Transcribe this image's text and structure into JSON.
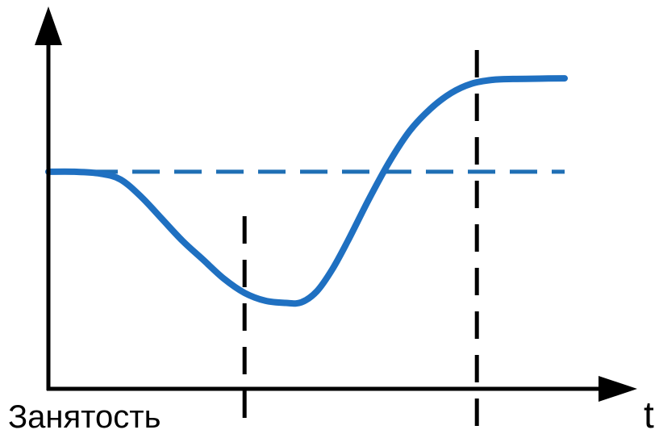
{
  "chart_data": {
    "type": "line",
    "title": "",
    "xlabel": "t",
    "ylabel": "Занятость",
    "grid": false,
    "legend": "none",
    "xlim": [
      0,
      100
    ],
    "ylim": [
      0,
      100
    ],
    "reference_line": {
      "label": "",
      "y": 69,
      "style": "dashed",
      "color": "#1f6fb5"
    },
    "markers": [
      {
        "label": "",
        "x": 38,
        "style": "dashed",
        "color": "#000000"
      },
      {
        "label": "",
        "x": 83,
        "style": "dashed",
        "color": "#000000"
      }
    ],
    "series": [
      {
        "color": "#1f70c1",
        "x": [
          0,
          5,
          10,
          14,
          18,
          22,
          26,
          30,
          34,
          38,
          42,
          46,
          49,
          52,
          55,
          58,
          62,
          66,
          70,
          74,
          78,
          82,
          86,
          90,
          95,
          100
        ],
        "y": [
          69,
          69,
          68.4,
          66.5,
          61,
          54,
          47,
          41,
          35,
          30.5,
          28,
          27.3,
          27.5,
          31,
          38,
          47,
          60,
          72,
          82,
          89,
          94,
          97,
          98.2,
          98.5,
          98.6,
          98.7
        ]
      }
    ],
    "colors": {
      "curve": "#1f70c1",
      "reference": "#1f6fb5",
      "axes": "#000000"
    }
  }
}
